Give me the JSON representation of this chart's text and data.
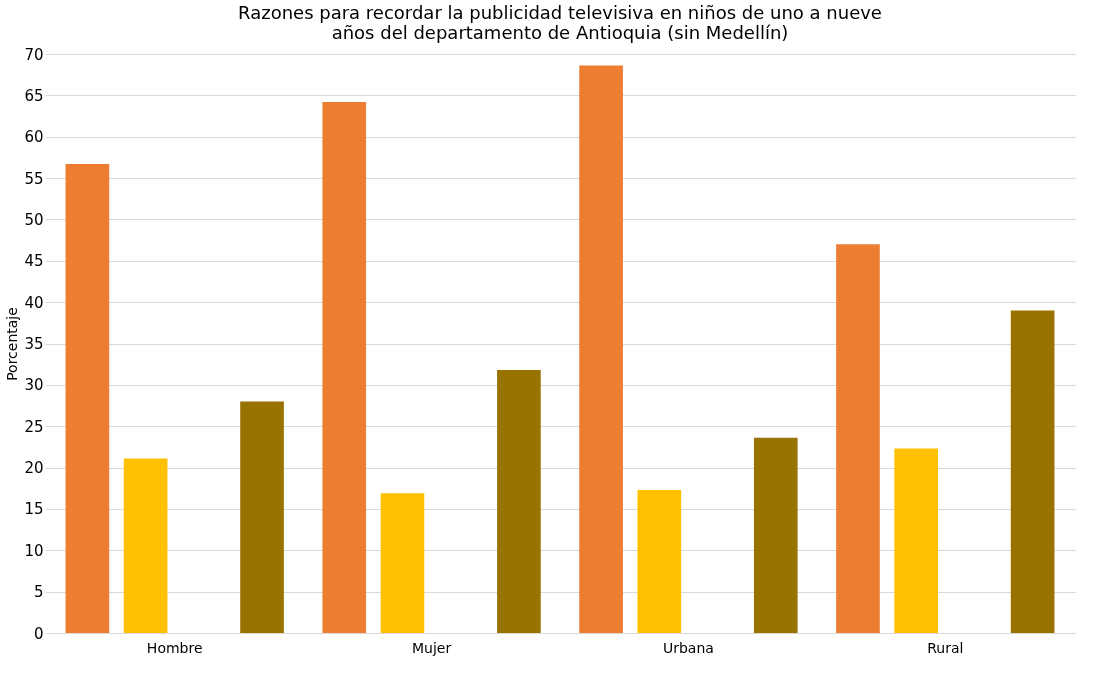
{
  "chart_data": {
    "type": "bar",
    "title": "Razones para recordar la publicidad televisiva en niños de uno a nueve años del departamento de Antioquia (sin Medellín)",
    "ylabel": "Porcentaje",
    "categories": [
      "Hombre",
      "Mujer",
      "Urbana",
      "Rural"
    ],
    "series": [
      {
        "color": "#ed7d31",
        "values": [
          56.7,
          64.2,
          68.6,
          47.0
        ]
      },
      {
        "color": "#ffc000",
        "values": [
          21.1,
          16.9,
          17.3,
          22.3
        ]
      },
      {
        "color": "#a5a5a5",
        "values": [
          null,
          null,
          null,
          null
        ]
      },
      {
        "color": "#997300",
        "values": [
          28.0,
          31.8,
          23.6,
          39.0
        ]
      }
    ],
    "ylim": [
      0,
      70
    ],
    "yticks": [
      0,
      5,
      10,
      15,
      20,
      25,
      30,
      35,
      40,
      45,
      50,
      55,
      60,
      65,
      70
    ],
    "grid": "y",
    "legend": false
  }
}
